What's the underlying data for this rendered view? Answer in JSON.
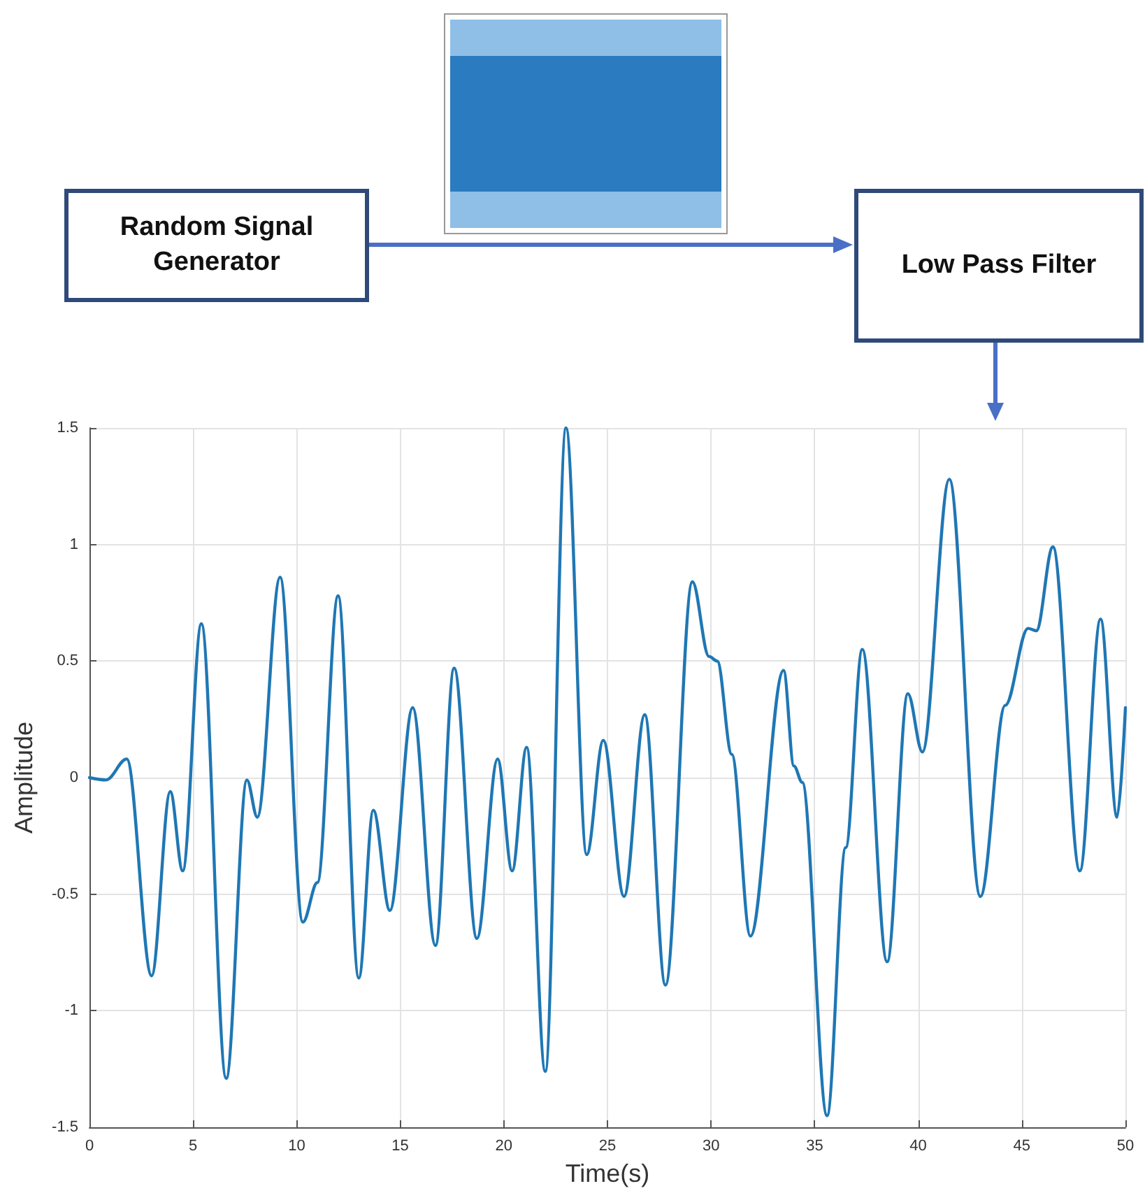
{
  "chart_data": {
    "type": "line",
    "xlabel": "Time(s)",
    "ylabel": "Amplitude",
    "annotations": [
      "Random Signal Generator",
      "Low Pass Filter"
    ],
    "x": [
      0,
      0.8,
      1.8,
      3.0,
      3.9,
      4.5,
      5.4,
      6.6,
      7.6,
      8.1,
      9.2,
      10.3,
      11.0,
      12.0,
      13.0,
      13.7,
      14.5,
      15.6,
      16.7,
      17.6,
      18.7,
      19.7,
      20.4,
      21.1,
      22.0,
      23.0,
      24.0,
      24.8,
      25.8,
      26.8,
      27.8,
      29.1,
      29.9,
      30.3,
      31.0,
      31.9,
      33.5,
      34.0,
      34.4,
      35.6,
      36.5,
      37.3,
      38.5,
      39.5,
      40.2,
      41.5,
      43.0,
      44.2,
      45.3,
      45.7,
      46.5,
      47.8,
      48.8,
      49.6,
      50
    ],
    "series": [
      {
        "color": "#1f77b4",
        "values": [
          0,
          -0.01,
          0.08,
          -0.85,
          -0.06,
          -0.4,
          0.66,
          -1.29,
          -0.01,
          -0.17,
          0.86,
          -0.62,
          -0.45,
          0.78,
          -0.86,
          -0.14,
          -0.57,
          0.3,
          -0.72,
          0.47,
          -0.69,
          0.08,
          -0.4,
          0.13,
          -1.26,
          1.5,
          -0.33,
          0.16,
          -0.51,
          0.27,
          -0.89,
          0.84,
          0.52,
          0.5,
          0.1,
          -0.68,
          0.46,
          0.05,
          -0.02,
          -1.45,
          -0.3,
          0.55,
          -0.79,
          0.36,
          0.11,
          1.28,
          -0.51,
          0.31,
          0.64,
          0.63,
          0.99,
          -0.4,
          0.68,
          -0.17,
          0.3
        ]
      }
    ],
    "xlim": [
      0,
      50
    ],
    "xticks": [
      0,
      5,
      10,
      15,
      20,
      25,
      30,
      35,
      40,
      45,
      50
    ],
    "ylim": [
      -1.5,
      1.5
    ],
    "yticks": [
      -1.5,
      -1,
      -0.5,
      0,
      0.5,
      1,
      1.5
    ],
    "grid": true,
    "marker": "none",
    "line_style": "solid"
  }
}
